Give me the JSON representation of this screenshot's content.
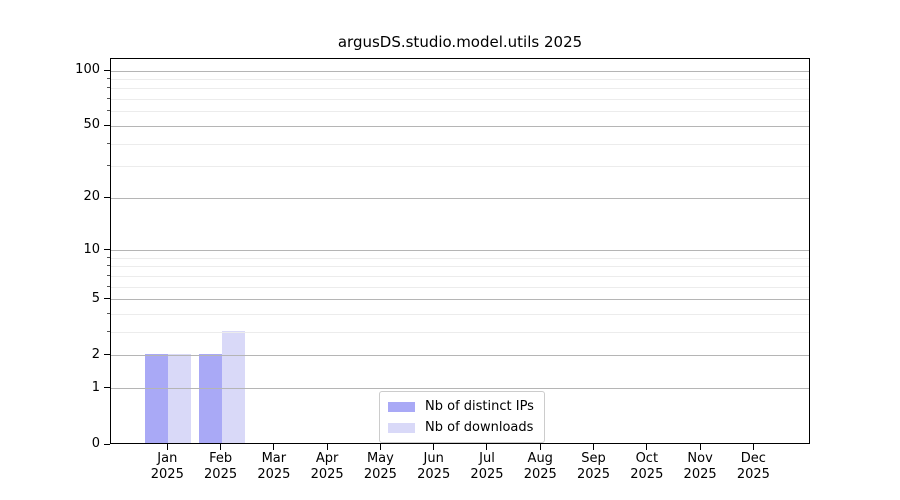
{
  "chart_data": {
    "type": "bar",
    "title": "argusDS.studio.model.utils 2025",
    "x_tick_labels": [
      {
        "month": "Jan",
        "year": "2025"
      },
      {
        "month": "Feb",
        "year": "2025"
      },
      {
        "month": "Mar",
        "year": "2025"
      },
      {
        "month": "Apr",
        "year": "2025"
      },
      {
        "month": "May",
        "year": "2025"
      },
      {
        "month": "Jun",
        "year": "2025"
      },
      {
        "month": "Jul",
        "year": "2025"
      },
      {
        "month": "Aug",
        "year": "2025"
      },
      {
        "month": "Sep",
        "year": "2025"
      },
      {
        "month": "Oct",
        "year": "2025"
      },
      {
        "month": "Nov",
        "year": "2025"
      },
      {
        "month": "Dec",
        "year": "2025"
      }
    ],
    "series": [
      {
        "name": "Nb of distinct IPs",
        "color": "#a9a9f6",
        "values": [
          2,
          2,
          0,
          0,
          0,
          0,
          0,
          0,
          0,
          0,
          0,
          0
        ]
      },
      {
        "name": "Nb of downloads",
        "color": "#d9d9f8",
        "values": [
          2,
          3,
          0,
          0,
          0,
          0,
          0,
          0,
          0,
          0,
          0,
          0
        ]
      }
    ],
    "y_axis": {
      "scale": "log1p",
      "major_ticks": [
        0,
        1,
        2,
        5,
        10,
        20,
        50,
        100
      ],
      "minor_ticks": [
        3,
        4,
        6,
        7,
        8,
        9,
        30,
        40,
        60,
        70,
        80,
        90
      ],
      "max_value": 100
    },
    "grid": "horizontal-only",
    "legend_position": "lower center"
  }
}
